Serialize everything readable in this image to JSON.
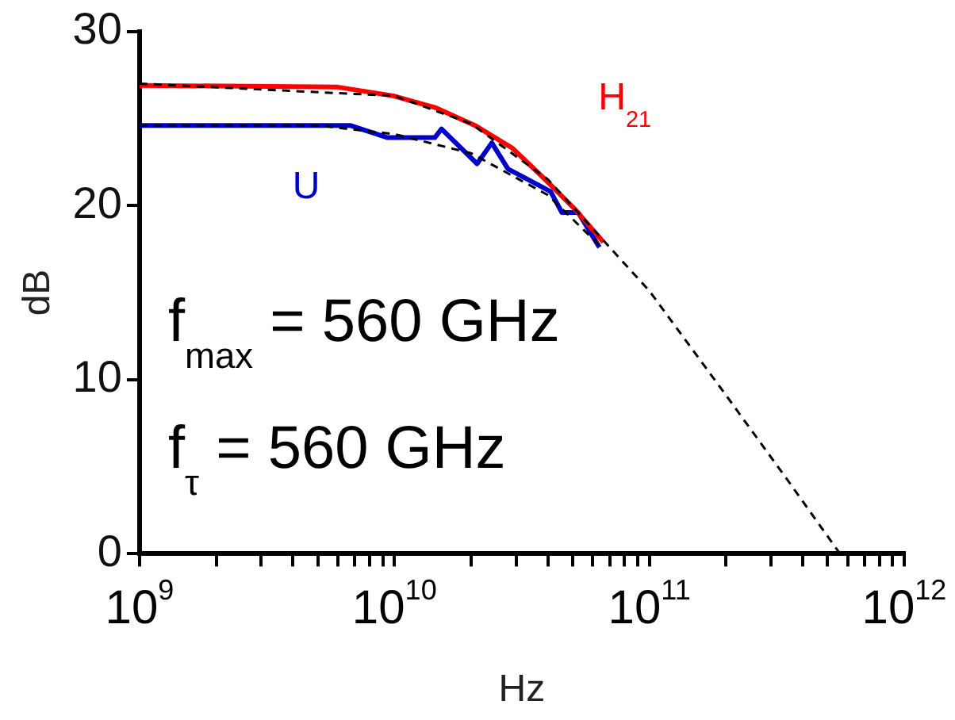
{
  "chart_data": {
    "type": "line",
    "xlabel": "Hz",
    "ylabel": "dB",
    "log": "x",
    "grid": false,
    "legend": false,
    "marker": "none",
    "line_style": "solid",
    "xlim": [
      1000000000.0,
      1000000000000.0
    ],
    "ylim": [
      0,
      30
    ],
    "yticks": [
      0,
      10,
      20,
      30
    ],
    "xticks": [
      {
        "value": 1000000000.0,
        "label": "10$^{9}$"
      },
      {
        "value": 2000000000.0,
        "label": null
      },
      {
        "value": 3000000000.0,
        "label": null
      },
      {
        "value": 4000000000.0,
        "label": null
      },
      {
        "value": 5000000000.0,
        "label": null
      },
      {
        "value": 6000000000.0,
        "label": null
      },
      {
        "value": 7000000000.0,
        "label": null
      },
      {
        "value": 8000000000.0,
        "label": null
      },
      {
        "value": 9000000000.0,
        "label": null
      },
      {
        "value": 10000000000.0,
        "label": "10$^{10}$"
      },
      {
        "value": 20000000000.0,
        "label": null
      },
      {
        "value": 30000000000.0,
        "label": null
      },
      {
        "value": 40000000000.0,
        "label": null
      },
      {
        "value": 50000000000.0,
        "label": null
      },
      {
        "value": 60000000000.0,
        "label": null
      },
      {
        "value": 70000000000.0,
        "label": null
      },
      {
        "value": 80000000000.0,
        "label": null
      },
      {
        "value": 90000000000.0,
        "label": null
      },
      {
        "value": 100000000000.0,
        "label": "10$^{11}$"
      },
      {
        "value": 200000000000.0,
        "label": null
      },
      {
        "value": 300000000000.0,
        "label": null
      },
      {
        "value": 400000000000.0,
        "label": null
      },
      {
        "value": 500000000000.0,
        "label": null
      },
      {
        "value": 600000000000.0,
        "label": null
      },
      {
        "value": 700000000000.0,
        "label": null
      },
      {
        "value": 800000000000.0,
        "label": null
      },
      {
        "value": 900000000000.0,
        "label": null
      },
      {
        "value": 1000000000000.0,
        "label": "10$^{12}$"
      }
    ],
    "series": [
      {
        "name": "H$_{21}$",
        "color": "#ff0000",
        "x": [
          1000000000.0,
          6000000000.0,
          9900000000.0,
          14600000000.0,
          20700000000.0,
          29000000000.0,
          39000000000.0,
          51000000000.0,
          66000000000.0
        ],
        "values": [
          26.9,
          26.8,
          26.3,
          25.6,
          24.6,
          23.3,
          21.5,
          19.8,
          17.9
        ]
      },
      {
        "name": "U",
        "color": "#0000cc",
        "x": [
          1000000000.0,
          5000000000.0,
          6700000000.0,
          9400000000.0,
          14400000000.0,
          15300000000.0,
          21100000000.0,
          24100000000.0,
          27900000000.0,
          32400000000.0,
          41000000000.0,
          45400000000.0,
          52600000000.0,
          63700000000.0
        ],
        "values": [
          24.6,
          24.6,
          24.6,
          23.9,
          23.9,
          24.4,
          22.4,
          23.6,
          22.1,
          21.6,
          20.8,
          19.6,
          19.6,
          17.6
        ]
      },
      {
        "color": "#000000",
        "line_style": "dashed",
        "x": [
          1000000000.0,
          10000000000.0,
          20000000000.0,
          40000000000.0,
          100000000000.0,
          200000000000.0,
          350000000000.0,
          560000000000.0
        ],
        "values": [
          27,
          26.3,
          24.7,
          21.5,
          15.1,
          9.1,
          4.2,
          0
        ]
      },
      {
        "color": "#000000",
        "line_style": "dashed",
        "x": [
          1000000000.0,
          5000000000.0,
          10000000000.0,
          20000000000.0,
          40000000000.0,
          65000000000.0
        ],
        "values": [
          24.6,
          24.6,
          24.1,
          23,
          20.6,
          17.6
        ]
      }
    ],
    "annotations": [
      "f$_{max}$ = 560 GHz",
      "f$_{τ}$ = 560 GHz"
    ]
  }
}
